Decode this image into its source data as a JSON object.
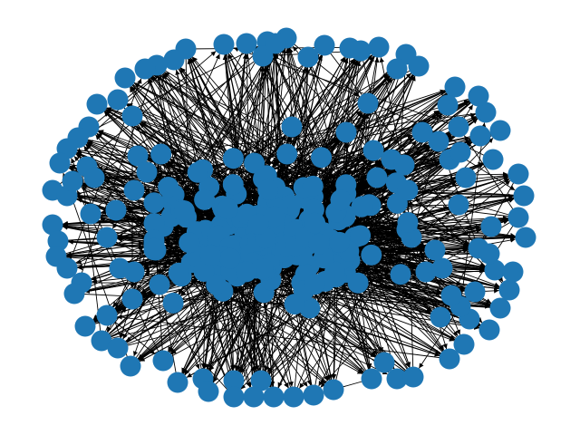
{
  "figure": {
    "background_color": "#ffffff"
  },
  "graph": {
    "type": "directed-network",
    "layout": "spring",
    "node_color": "#1f77b4",
    "edge_color": "#000000",
    "node_labels_visible": false,
    "axes_visible": false,
    "approx_node_count": 300,
    "edge_density": "very-dense"
  }
}
